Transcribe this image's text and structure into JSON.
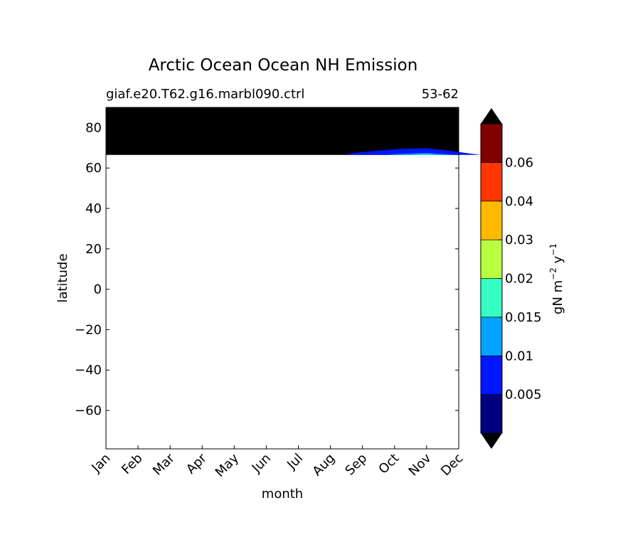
{
  "chart_data": {
    "type": "heatmap",
    "title": "Arctic Ocean Ocean NH Emission",
    "subtitle_left": "giaf.e20.T62.g16.marbl090.ctrl",
    "subtitle_right": "53-62",
    "xlabel": "month",
    "ylabel": "latitude",
    "x_categories": [
      "Jan",
      "Feb",
      "Mar",
      "Apr",
      "May",
      "Jun",
      "Jul",
      "Aug",
      "Sep",
      "Oct",
      "Nov",
      "Dec"
    ],
    "ylim": [
      -79,
      90
    ],
    "yticks": [
      80,
      60,
      40,
      20,
      0,
      -20,
      -40,
      -60
    ],
    "ytick_labels": [
      "80",
      "60",
      "40",
      "20",
      "0",
      "−20",
      "−40",
      "−60"
    ],
    "masked_region": {
      "lat_min": 66.5,
      "lat_max": 90,
      "color": "#000000"
    },
    "emission_contours": [
      {
        "level": 0.005,
        "color": "#0016ff",
        "outline": [
          [
            7.4,
            66.5
          ],
          [
            7.8,
            67.6
          ],
          [
            8.5,
            68.6
          ],
          [
            9.2,
            69.5
          ],
          [
            10.0,
            69.8
          ],
          [
            10.6,
            68.8
          ],
          [
            11.3,
            67.3
          ],
          [
            11.7,
            66.5
          ]
        ]
      },
      {
        "level": 0.01,
        "color": "#00a4ff",
        "outline": [
          [
            8.7,
            66.5
          ],
          [
            9.3,
            67.1
          ],
          [
            10.0,
            67.4
          ],
          [
            10.6,
            66.9
          ],
          [
            10.9,
            66.5
          ]
        ]
      },
      {
        "level": 0.015,
        "color": "#35ffc2",
        "outline": [
          [
            9.5,
            66.5
          ],
          [
            9.8,
            66.9
          ],
          [
            10.1,
            66.9
          ],
          [
            10.3,
            66.5
          ]
        ]
      }
    ],
    "colorbar": {
      "label_main": "gN m",
      "label_sup1": "−2",
      "label_mid": " y",
      "label_sup2": "−1",
      "colors": [
        "#000080",
        "#0016ff",
        "#00a4ff",
        "#35ffc2",
        "#b8ff3f",
        "#ffba00",
        "#ff3600",
        "#800000"
      ],
      "over_color": "#000000",
      "under_color": "#000000",
      "tick_labels": [
        "0.005",
        "0.01",
        "0.015",
        "0.02",
        "0.03",
        "0.04",
        "0.06"
      ]
    }
  }
}
